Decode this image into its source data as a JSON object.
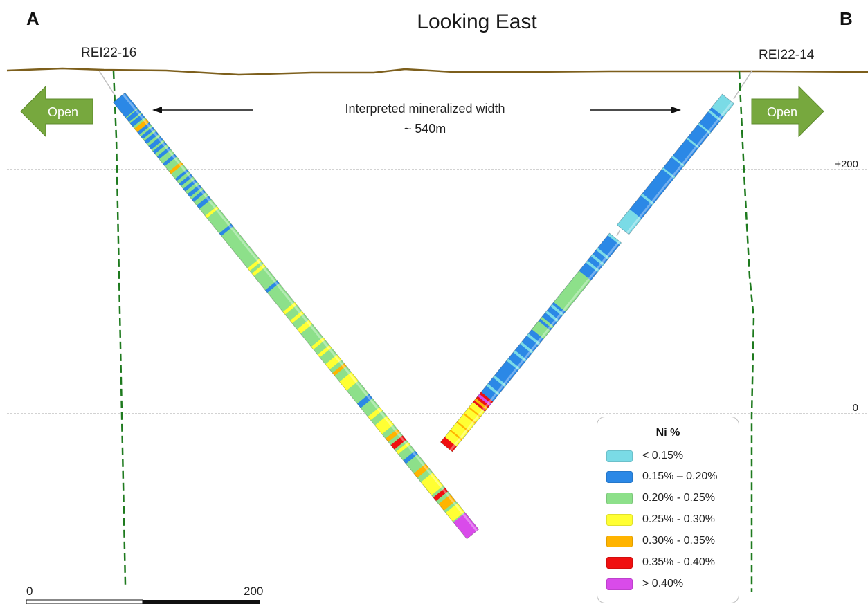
{
  "section": {
    "corner_left": "A",
    "corner_right": "B",
    "title": "Looking East"
  },
  "holes": [
    {
      "name": "REI22-16"
    },
    {
      "name": "REI22-14"
    }
  ],
  "annotation": {
    "line1": "Interpreted mineralized width",
    "line2": "~ 540m"
  },
  "open_arrows": {
    "left": "Open",
    "right": "Open",
    "color": "#77a83e"
  },
  "elevations": [
    {
      "label": "+200",
      "value": 200
    },
    {
      "label": "0",
      "value": 0
    }
  ],
  "scale_bar": {
    "start_label": "0",
    "end_label": "200"
  },
  "legend": {
    "title": "Ni %",
    "items": [
      {
        "label": "< 0.15%",
        "color": "#7adbe6"
      },
      {
        "label": "0.15% – 0.20%",
        "color": "#2b88e6"
      },
      {
        "label": "0.20% - 0.25%",
        "color": "#8de08a"
      },
      {
        "label": "0.25% - 0.30%",
        "color": "#ffff33"
      },
      {
        "label": "0.30% - 0.35%",
        "color": "#ffb400"
      },
      {
        "label": "0.35% - 0.40%",
        "color": "#f01010"
      },
      {
        "label": "> 0.40%",
        "color": "#d94bea"
      }
    ]
  },
  "colors": {
    "topography": "#7d5f1c",
    "fault_lines": "#1e7a1e",
    "elevation_lines": "#a6a6a6"
  }
}
